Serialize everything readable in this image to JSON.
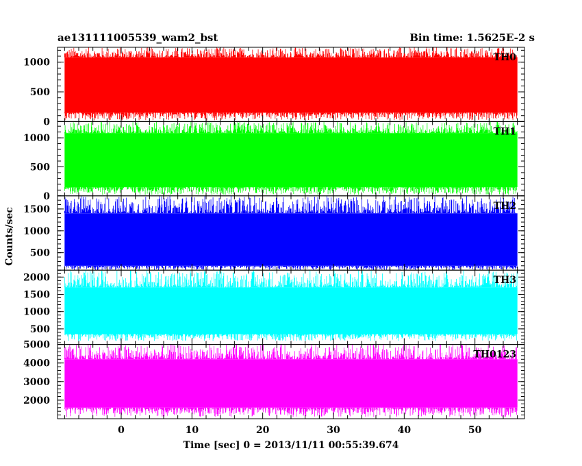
{
  "header": {
    "left_title": "ae131111005539_wam2_bst",
    "right_title": "Bin time: 1.5625E-2 s"
  },
  "axes": {
    "xlabel": "Time [sec] 0 = 2013/11/11 00:55:39.674",
    "ylabel": "Counts/sec"
  },
  "chart_data": {
    "type": "line",
    "title": "ae131111005539_wam2_bst",
    "subtitle": "Bin time: 1.5625E-2 s",
    "xlabel": "Time [sec] 0 = 2013/11/11 00:55:39.674",
    "ylabel": "Counts/sec",
    "xlim": [
      -9,
      57
    ],
    "x_range": [
      -8,
      56
    ],
    "x_ticks": [
      0,
      10,
      20,
      30,
      40,
      50
    ],
    "x_tick_labels": [
      "0",
      "10",
      "20",
      "30",
      "40",
      "50"
    ],
    "series": [
      {
        "name": "TH0",
        "color": "#ff0000",
        "ylim": [
          0,
          1250
        ],
        "y_ticks": [
          0,
          500,
          1000
        ],
        "y_tick_labels": [
          "0",
          "500",
          "1000"
        ],
        "mean": 620,
        "band": [
          150,
          1080
        ],
        "min": 20,
        "max": 1250
      },
      {
        "name": "TH1",
        "color": "#00ff00",
        "ylim": [
          0,
          1280
        ],
        "y_ticks": [
          0,
          500,
          1000
        ],
        "y_tick_labels": [
          "0",
          "500",
          "1000"
        ],
        "mean": 610,
        "band": [
          150,
          1080
        ],
        "min": 20,
        "max": 1280
      },
      {
        "name": "TH2",
        "color": "#0000ff",
        "ylim": [
          100,
          1800
        ],
        "y_ticks": [
          500,
          1000,
          1500
        ],
        "y_tick_labels": [
          "500",
          "1000",
          "1500"
        ],
        "mean": 760,
        "band": [
          200,
          1400
        ],
        "min": 100,
        "max": 1800
      },
      {
        "name": "TH3",
        "color": "#00ffff",
        "ylim": [
          50,
          2200
        ],
        "y_ticks": [
          500,
          1000,
          1500,
          2000
        ],
        "y_tick_labels": [
          "500",
          "1000",
          "1500",
          "2000"
        ],
        "mean": 1050,
        "band": [
          350,
          1700
        ],
        "min": 150,
        "max": 2200
      },
      {
        "name": "TH0123",
        "color": "#ff00ff",
        "ylim": [
          1000,
          5000
        ],
        "y_ticks": [
          2000,
          3000,
          4000,
          5000
        ],
        "y_tick_labels": [
          "2000",
          "3000",
          "4000",
          "5000"
        ],
        "mean": 2950,
        "band": [
          1600,
          4200
        ],
        "min": 1100,
        "max": 5000
      }
    ]
  }
}
